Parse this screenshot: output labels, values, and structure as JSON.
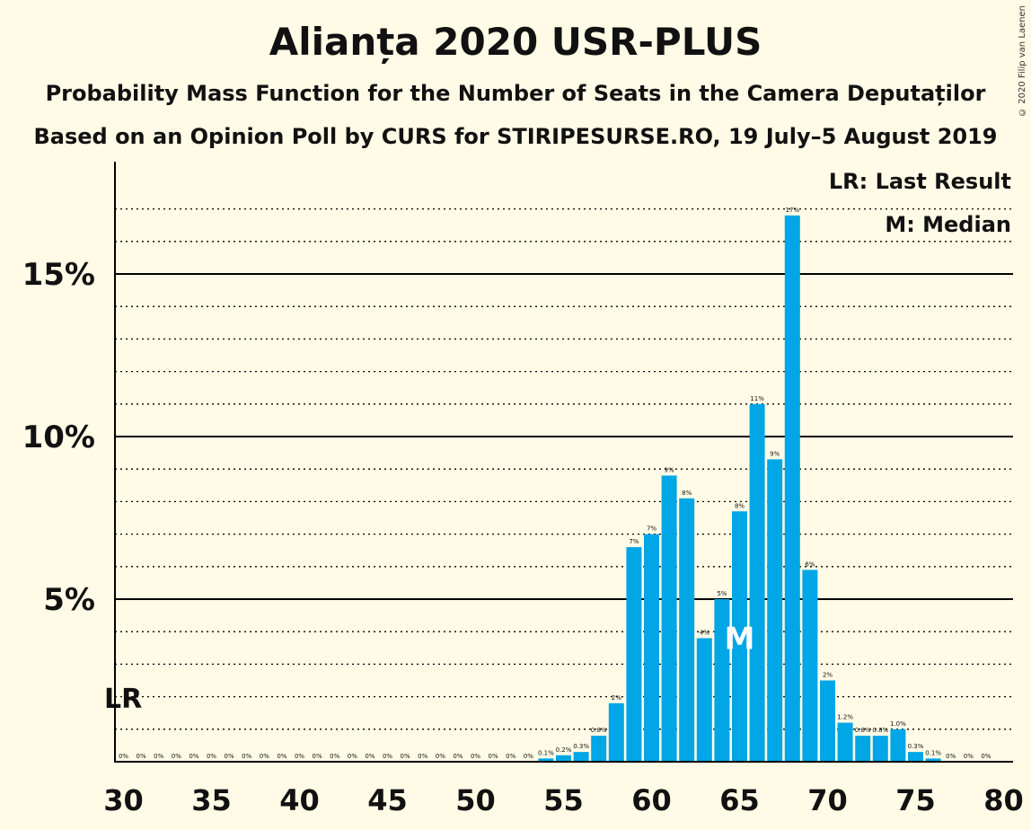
{
  "title": "Alianța 2020 USR-PLUS",
  "subtitle1": "Probability Mass Function for the Number of Seats in the Camera Deputaților",
  "subtitle2": "Based on an Opinion Poll by CURS for STIRIPESURSE.RO, 19 July–5 August 2019",
  "copyright": "© 2020 Filip van Laenen",
  "chart_data": {
    "type": "bar",
    "x": [
      30,
      31,
      32,
      33,
      34,
      35,
      36,
      37,
      38,
      39,
      40,
      41,
      42,
      43,
      44,
      45,
      46,
      47,
      48,
      49,
      50,
      51,
      52,
      53,
      54,
      55,
      56,
      57,
      58,
      59,
      60,
      61,
      62,
      63,
      64,
      65,
      66,
      67,
      68,
      69,
      70,
      71,
      72,
      73,
      74,
      75,
      76,
      77,
      78,
      79,
      80
    ],
    "values": [
      0,
      0,
      0,
      0,
      0,
      0,
      0,
      0,
      0,
      0,
      0,
      0,
      0,
      0,
      0,
      0,
      0,
      0,
      0,
      0,
      0,
      0,
      0,
      0,
      0.1,
      0.2,
      0.3,
      0.8,
      1.8,
      6.6,
      7.0,
      8.8,
      8.1,
      3.8,
      5.0,
      7.7,
      11.0,
      9.3,
      16.8,
      5.9,
      2.5,
      1.2,
      0.8,
      0.8,
      1.0,
      0.3,
      0.1,
      0,
      0,
      0,
      0
    ],
    "labels": [
      "0%",
      "0%",
      "0%",
      "0%",
      "0%",
      "0%",
      "0%",
      "0%",
      "0%",
      "0%",
      "0%",
      "0%",
      "0%",
      "0%",
      "0%",
      "0%",
      "0%",
      "0%",
      "0%",
      "0%",
      "0%",
      "0%",
      "0%",
      "0%",
      "0.1%",
      "0.2%",
      "0.3%",
      "0.8%",
      "2%",
      "7%",
      "7%",
      "9%",
      "8%",
      "4%",
      "5%",
      "8%",
      "11%",
      "9%",
      "17%",
      "6%",
      "2%",
      "1.2%",
      "0.8%",
      "0.8%",
      "1.0%",
      "0.3%",
      "0.1%",
      "0%",
      "0%",
      "0%",
      ""
    ],
    "xticks": [
      30,
      35,
      40,
      45,
      50,
      55,
      60,
      65,
      70,
      75,
      80
    ],
    "yticks": [
      5,
      10,
      15
    ],
    "ytick_labels": [
      "5%",
      "10%",
      "15%"
    ],
    "ylim": [
      0,
      18
    ],
    "last_result_seat": 30,
    "median_seat": 65,
    "last_result_marker": "LR",
    "median_marker": "M",
    "legend": [
      "LR: Last Result",
      "M: Median"
    ],
    "legend_position": "top-right",
    "bar_color": "#00a6e6",
    "grid": "dotted minor every 1%, solid major every 5%"
  }
}
